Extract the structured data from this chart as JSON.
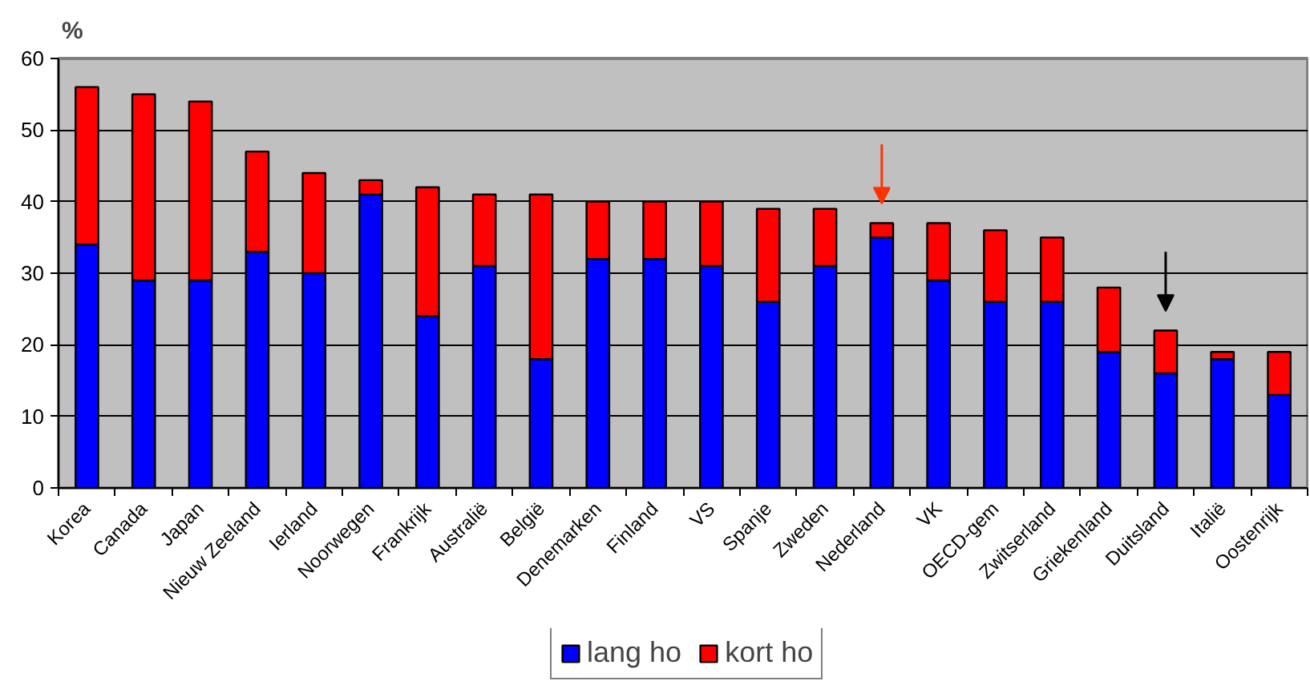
{
  "chart_data": {
    "type": "bar",
    "title": "%",
    "categories": [
      "Korea",
      "Canada",
      "Japan",
      "Nieuw Zeeland",
      "Ierland",
      "Noorwegen",
      "Frankrijk",
      "Australië",
      "België",
      "Denemarken",
      "Finland",
      "VS",
      "Spanje",
      "Zweden",
      "Nederland",
      "VK",
      "OECD-gem",
      "Zwitserland",
      "Griekenland",
      "Duitsland",
      "Italië",
      "Oostenrijk"
    ],
    "series": [
      {
        "name": "lang ho",
        "color": "#0000ff",
        "values": [
          34,
          29,
          29,
          33,
          30,
          41,
          24,
          31,
          18,
          32,
          32,
          31,
          26,
          31,
          35,
          29,
          26,
          26,
          19,
          16,
          18,
          13
        ]
      },
      {
        "name": "kort ho",
        "color": "#ff0000",
        "values": [
          22,
          26,
          25,
          14,
          14,
          2,
          18,
          10,
          23,
          8,
          8,
          9,
          13,
          8,
          2,
          8,
          10,
          9,
          9,
          6,
          1,
          6
        ]
      }
    ],
    "stacked": true,
    "ylim": [
      0,
      60
    ],
    "yticks": [
      0,
      10,
      20,
      30,
      40,
      50,
      60
    ],
    "grid": "y",
    "legend": "bottom"
  }
}
